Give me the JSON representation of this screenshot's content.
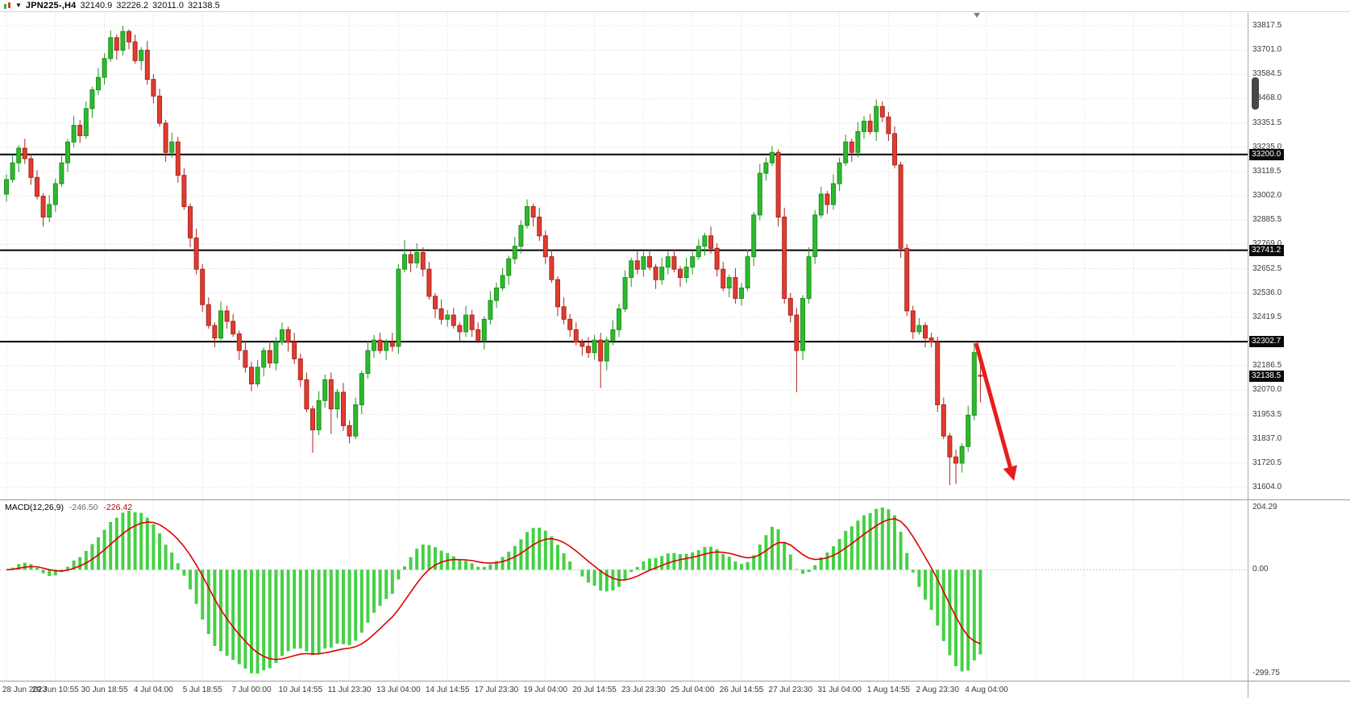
{
  "title_bar": {
    "symbol_period": "JPN225-,H4",
    "open": "32140.9",
    "high": "32226.2",
    "low": "32011.0",
    "close": "32138.5"
  },
  "macd_panel": {
    "name": "MACD(12,26,9)",
    "histogram_value": "-246.50",
    "signal_value": "-226.42"
  },
  "colors": {
    "bull": "#2eb82e",
    "bull_stroke": "#1e941e",
    "bear": "#e03c31",
    "bear_stroke": "#aa261c",
    "hist": "#46d046",
    "signal": "#dd0000",
    "grid": "#dcdcdc",
    "hline": "#000000",
    "arrow": "#e81c1c",
    "badge_bg": "#0a0a0a",
    "badge_text": "#ffffff",
    "axis_text": "#3a3a3a"
  },
  "chart_data": {
    "type": "candlestick",
    "symbol": "JPN225-",
    "timeframe": "H4",
    "title": "JPN225-,H4 32140.9 32226.2 32011.0 32138.5",
    "price_range": [
      31546,
      33879
    ],
    "price_axis_ticks": [
      33817.5,
      33701.0,
      33584.5,
      33468.0,
      33351.5,
      33235.0,
      33118.5,
      33002.0,
      32885.5,
      32769.0,
      32652.5,
      32536.0,
      32419.5,
      32303.0,
      32186.5,
      32070.0,
      31953.5,
      31837.0,
      31720.5,
      31604.0
    ],
    "horizontal_lines": [
      {
        "price": 33200.0,
        "label": "33200.0"
      },
      {
        "price": 32741.2,
        "label": "32741.2"
      },
      {
        "price": 32302.7,
        "label": "32302.7"
      }
    ],
    "current_price": {
      "price": 32138.5,
      "label": "32138.5"
    },
    "time_labels": [
      "28 Jun 2023",
      "29 Jun 10:55",
      "30 Jun 18:55",
      "4 Jul 04:00",
      "5 Jul 18:55",
      "7 Jul 00:00",
      "10 Jul 14:55",
      "11 Jul 23:30",
      "13 Jul 04:00",
      "14 Jul 14:55",
      "17 Jul 23:30",
      "19 Jul 04:00",
      "20 Jul 14:55",
      "23 Jul 23:30",
      "25 Jul 04:00",
      "26 Jul 14:55",
      "27 Jul 23:30",
      "31 Jul 04:00",
      "1 Aug 14:55",
      "2 Aug 23:30",
      "4 Aug 04:00"
    ],
    "candles": [
      [
        33010,
        33105,
        32975,
        33080
      ],
      [
        33080,
        33195,
        33065,
        33160
      ],
      [
        33160,
        33245,
        33115,
        33230
      ],
      [
        33230,
        33275,
        33155,
        33180
      ],
      [
        33180,
        33205,
        33055,
        33090
      ],
      [
        33090,
        33125,
        32985,
        33000
      ],
      [
        33000,
        33015,
        32855,
        32900
      ],
      [
        32900,
        33005,
        32875,
        32960
      ],
      [
        32960,
        33085,
        32925,
        33060
      ],
      [
        33060,
        33195,
        33045,
        33160
      ],
      [
        33160,
        33275,
        33115,
        33260
      ],
      [
        33260,
        33385,
        33235,
        33340
      ],
      [
        33340,
        33365,
        33255,
        33290
      ],
      [
        33290,
        33455,
        33275,
        33420
      ],
      [
        33420,
        33525,
        33375,
        33510
      ],
      [
        33510,
        33615,
        33485,
        33570
      ],
      [
        33570,
        33685,
        33535,
        33660
      ],
      [
        33660,
        33795,
        33645,
        33760
      ],
      [
        33760,
        33775,
        33655,
        33700
      ],
      [
        33700,
        33817,
        33675,
        33790
      ],
      [
        33790,
        33800,
        33705,
        33740
      ],
      [
        33740,
        33775,
        33635,
        33650
      ],
      [
        33650,
        33715,
        33605,
        33700
      ],
      [
        33700,
        33745,
        33535,
        33560
      ],
      [
        33560,
        33585,
        33445,
        33480
      ],
      [
        33480,
        33515,
        33335,
        33350
      ],
      [
        33350,
        33365,
        33165,
        33210
      ],
      [
        33210,
        33305,
        33185,
        33260
      ],
      [
        33260,
        33285,
        33065,
        33100
      ],
      [
        33100,
        33135,
        32935,
        32950
      ],
      [
        32950,
        32965,
        32755,
        32800
      ],
      [
        32800,
        32845,
        32625,
        32650
      ],
      [
        32650,
        32675,
        32445,
        32480
      ],
      [
        32480,
        32515,
        32365,
        32380
      ],
      [
        32380,
        32395,
        32275,
        32320
      ],
      [
        32320,
        32495,
        32295,
        32450
      ],
      [
        32450,
        32475,
        32365,
        32400
      ],
      [
        32400,
        32435,
        32325,
        32340
      ],
      [
        32340,
        32355,
        32215,
        32260
      ],
      [
        32260,
        32305,
        32155,
        32180
      ],
      [
        32180,
        32205,
        32065,
        32100
      ],
      [
        32100,
        32215,
        32085,
        32180
      ],
      [
        32180,
        32275,
        32135,
        32260
      ],
      [
        32260,
        32305,
        32175,
        32200
      ],
      [
        32200,
        32325,
        32165,
        32300
      ],
      [
        32300,
        32395,
        32285,
        32360
      ],
      [
        32360,
        32375,
        32255,
        32300
      ],
      [
        32300,
        32345,
        32195,
        32220
      ],
      [
        32220,
        32245,
        32085,
        32120
      ],
      [
        32120,
        32155,
        31965,
        31980
      ],
      [
        31980,
        31995,
        31770,
        31880
      ],
      [
        31880,
        32065,
        31855,
        32020
      ],
      [
        32020,
        32145,
        31985,
        32120
      ],
      [
        32120,
        32155,
        31860,
        31980
      ],
      [
        31980,
        32075,
        31935,
        32060
      ],
      [
        32060,
        32105,
        31875,
        31900
      ],
      [
        31900,
        31925,
        31815,
        31850
      ],
      [
        31850,
        32035,
        31835,
        32000
      ],
      [
        32000,
        32165,
        31955,
        32150
      ],
      [
        32150,
        32305,
        32125,
        32260
      ],
      [
        32260,
        32335,
        32225,
        32310
      ],
      [
        32310,
        32345,
        32245,
        32260
      ],
      [
        32260,
        32315,
        32215,
        32300
      ],
      [
        32300,
        32345,
        32255,
        32280
      ],
      [
        32280,
        32675,
        32245,
        32650
      ],
      [
        32650,
        32790,
        32635,
        32720
      ],
      [
        32720,
        32735,
        32635,
        32680
      ],
      [
        32680,
        32775,
        32655,
        32730
      ],
      [
        32730,
        32755,
        32615,
        32650
      ],
      [
        32650,
        32685,
        32505,
        32520
      ],
      [
        32520,
        32535,
        32415,
        32460
      ],
      [
        32460,
        32505,
        32385,
        32410
      ],
      [
        32410,
        32455,
        32375,
        32430
      ],
      [
        32430,
        32465,
        32365,
        32380
      ],
      [
        32380,
        32395,
        32305,
        32350
      ],
      [
        32350,
        32475,
        32325,
        32430
      ],
      [
        32430,
        32455,
        32325,
        32360
      ],
      [
        32360,
        32395,
        32295,
        32310
      ],
      [
        32310,
        32425,
        32265,
        32410
      ],
      [
        32410,
        32545,
        32385,
        32500
      ],
      [
        32500,
        32585,
        32465,
        32560
      ],
      [
        32560,
        32655,
        32545,
        32620
      ],
      [
        32620,
        32715,
        32575,
        32700
      ],
      [
        32700,
        32805,
        32675,
        32760
      ],
      [
        32760,
        32885,
        32725,
        32860
      ],
      [
        32860,
        32985,
        32845,
        32950
      ],
      [
        32950,
        32965,
        32855,
        32900
      ],
      [
        32900,
        32945,
        32785,
        32810
      ],
      [
        32810,
        32835,
        32675,
        32710
      ],
      [
        32710,
        32745,
        32585,
        32600
      ],
      [
        32600,
        32615,
        32425,
        32470
      ],
      [
        32470,
        32515,
        32385,
        32410
      ],
      [
        32410,
        32435,
        32325,
        32360
      ],
      [
        32360,
        32395,
        32285,
        32300
      ],
      [
        32300,
        32315,
        32235,
        32280
      ],
      [
        32280,
        32325,
        32225,
        32250
      ],
      [
        32250,
        32335,
        32215,
        32310
      ],
      [
        32310,
        32345,
        32080,
        32210
      ],
      [
        32210,
        32325,
        32165,
        32310
      ],
      [
        32310,
        32405,
        32285,
        32360
      ],
      [
        32360,
        32485,
        32325,
        32460
      ],
      [
        32460,
        32645,
        32445,
        32610
      ],
      [
        32610,
        32705,
        32565,
        32690
      ],
      [
        32690,
        32735,
        32625,
        32650
      ],
      [
        32650,
        32735,
        32615,
        32710
      ],
      [
        32710,
        32745,
        32645,
        32660
      ],
      [
        32660,
        32675,
        32555,
        32600
      ],
      [
        32600,
        32705,
        32575,
        32660
      ],
      [
        32660,
        32735,
        32625,
        32710
      ],
      [
        32710,
        32745,
        32635,
        32650
      ],
      [
        32650,
        32665,
        32565,
        32610
      ],
      [
        32610,
        32705,
        32585,
        32660
      ],
      [
        32660,
        32735,
        32625,
        32710
      ],
      [
        32710,
        32795,
        32695,
        32760
      ],
      [
        32760,
        32825,
        32715,
        32810
      ],
      [
        32810,
        32855,
        32725,
        32750
      ],
      [
        32750,
        32775,
        32615,
        32650
      ],
      [
        32650,
        32685,
        32545,
        32560
      ],
      [
        32560,
        32625,
        32515,
        32610
      ],
      [
        32610,
        32655,
        32485,
        32510
      ],
      [
        32510,
        32585,
        32475,
        32560
      ],
      [
        32560,
        32745,
        32545,
        32710
      ],
      [
        32710,
        32925,
        32665,
        32910
      ],
      [
        32910,
        33155,
        32885,
        33110
      ],
      [
        33110,
        33185,
        33075,
        33160
      ],
      [
        33160,
        33240,
        33145,
        33210
      ],
      [
        33210,
        33225,
        32855,
        32900
      ],
      [
        32900,
        32945,
        32485,
        32510
      ],
      [
        32510,
        32535,
        32395,
        32430
      ],
      [
        32430,
        32465,
        32060,
        32260
      ],
      [
        32260,
        32525,
        32215,
        32510
      ],
      [
        32510,
        32755,
        32485,
        32710
      ],
      [
        32710,
        32935,
        32675,
        32910
      ],
      [
        32910,
        33045,
        32895,
        33010
      ],
      [
        33010,
        33025,
        32915,
        32960
      ],
      [
        32960,
        33105,
        32935,
        33060
      ],
      [
        33060,
        33185,
        33025,
        33160
      ],
      [
        33160,
        33295,
        33145,
        33260
      ],
      [
        33260,
        33275,
        33165,
        33210
      ],
      [
        33210,
        33355,
        33185,
        33310
      ],
      [
        33310,
        33385,
        33275,
        33360
      ],
      [
        33360,
        33395,
        33295,
        33310
      ],
      [
        33310,
        33465,
        33265,
        33430
      ],
      [
        33430,
        33455,
        33355,
        33380
      ],
      [
        33380,
        33405,
        33265,
        33300
      ],
      [
        33300,
        33335,
        33135,
        33150
      ],
      [
        33150,
        33165,
        32705,
        32750
      ],
      [
        32750,
        32770,
        32425,
        32450
      ],
      [
        32450,
        32475,
        32315,
        32350
      ],
      [
        32350,
        32415,
        32335,
        32380
      ],
      [
        32380,
        32395,
        32275,
        32320
      ],
      [
        32320,
        32345,
        32275,
        32300
      ],
      [
        32300,
        32325,
        31965,
        32000
      ],
      [
        32000,
        32035,
        31835,
        31850
      ],
      [
        31850,
        31865,
        31615,
        31750
      ],
      [
        31750,
        31785,
        31620,
        31720
      ],
      [
        31720,
        31815,
        31675,
        31800
      ],
      [
        31800,
        31995,
        31775,
        31950
      ],
      [
        31950,
        32305,
        31925,
        32250
      ],
      [
        32140.9,
        32226.2,
        32011.0,
        32138.5
      ]
    ],
    "arrow": {
      "from_index": 158.3,
      "from_price": 32295,
      "to_index": 164.3,
      "to_price": 31655
    },
    "macd": {
      "type": "macd-indicator",
      "params": [
        12,
        26,
        9
      ],
      "axis_labels": {
        "max": "204.29",
        "zero": "0.00",
        "min": "-299.75"
      },
      "last_histogram": -246.5,
      "last_signal": -226.42
    }
  }
}
